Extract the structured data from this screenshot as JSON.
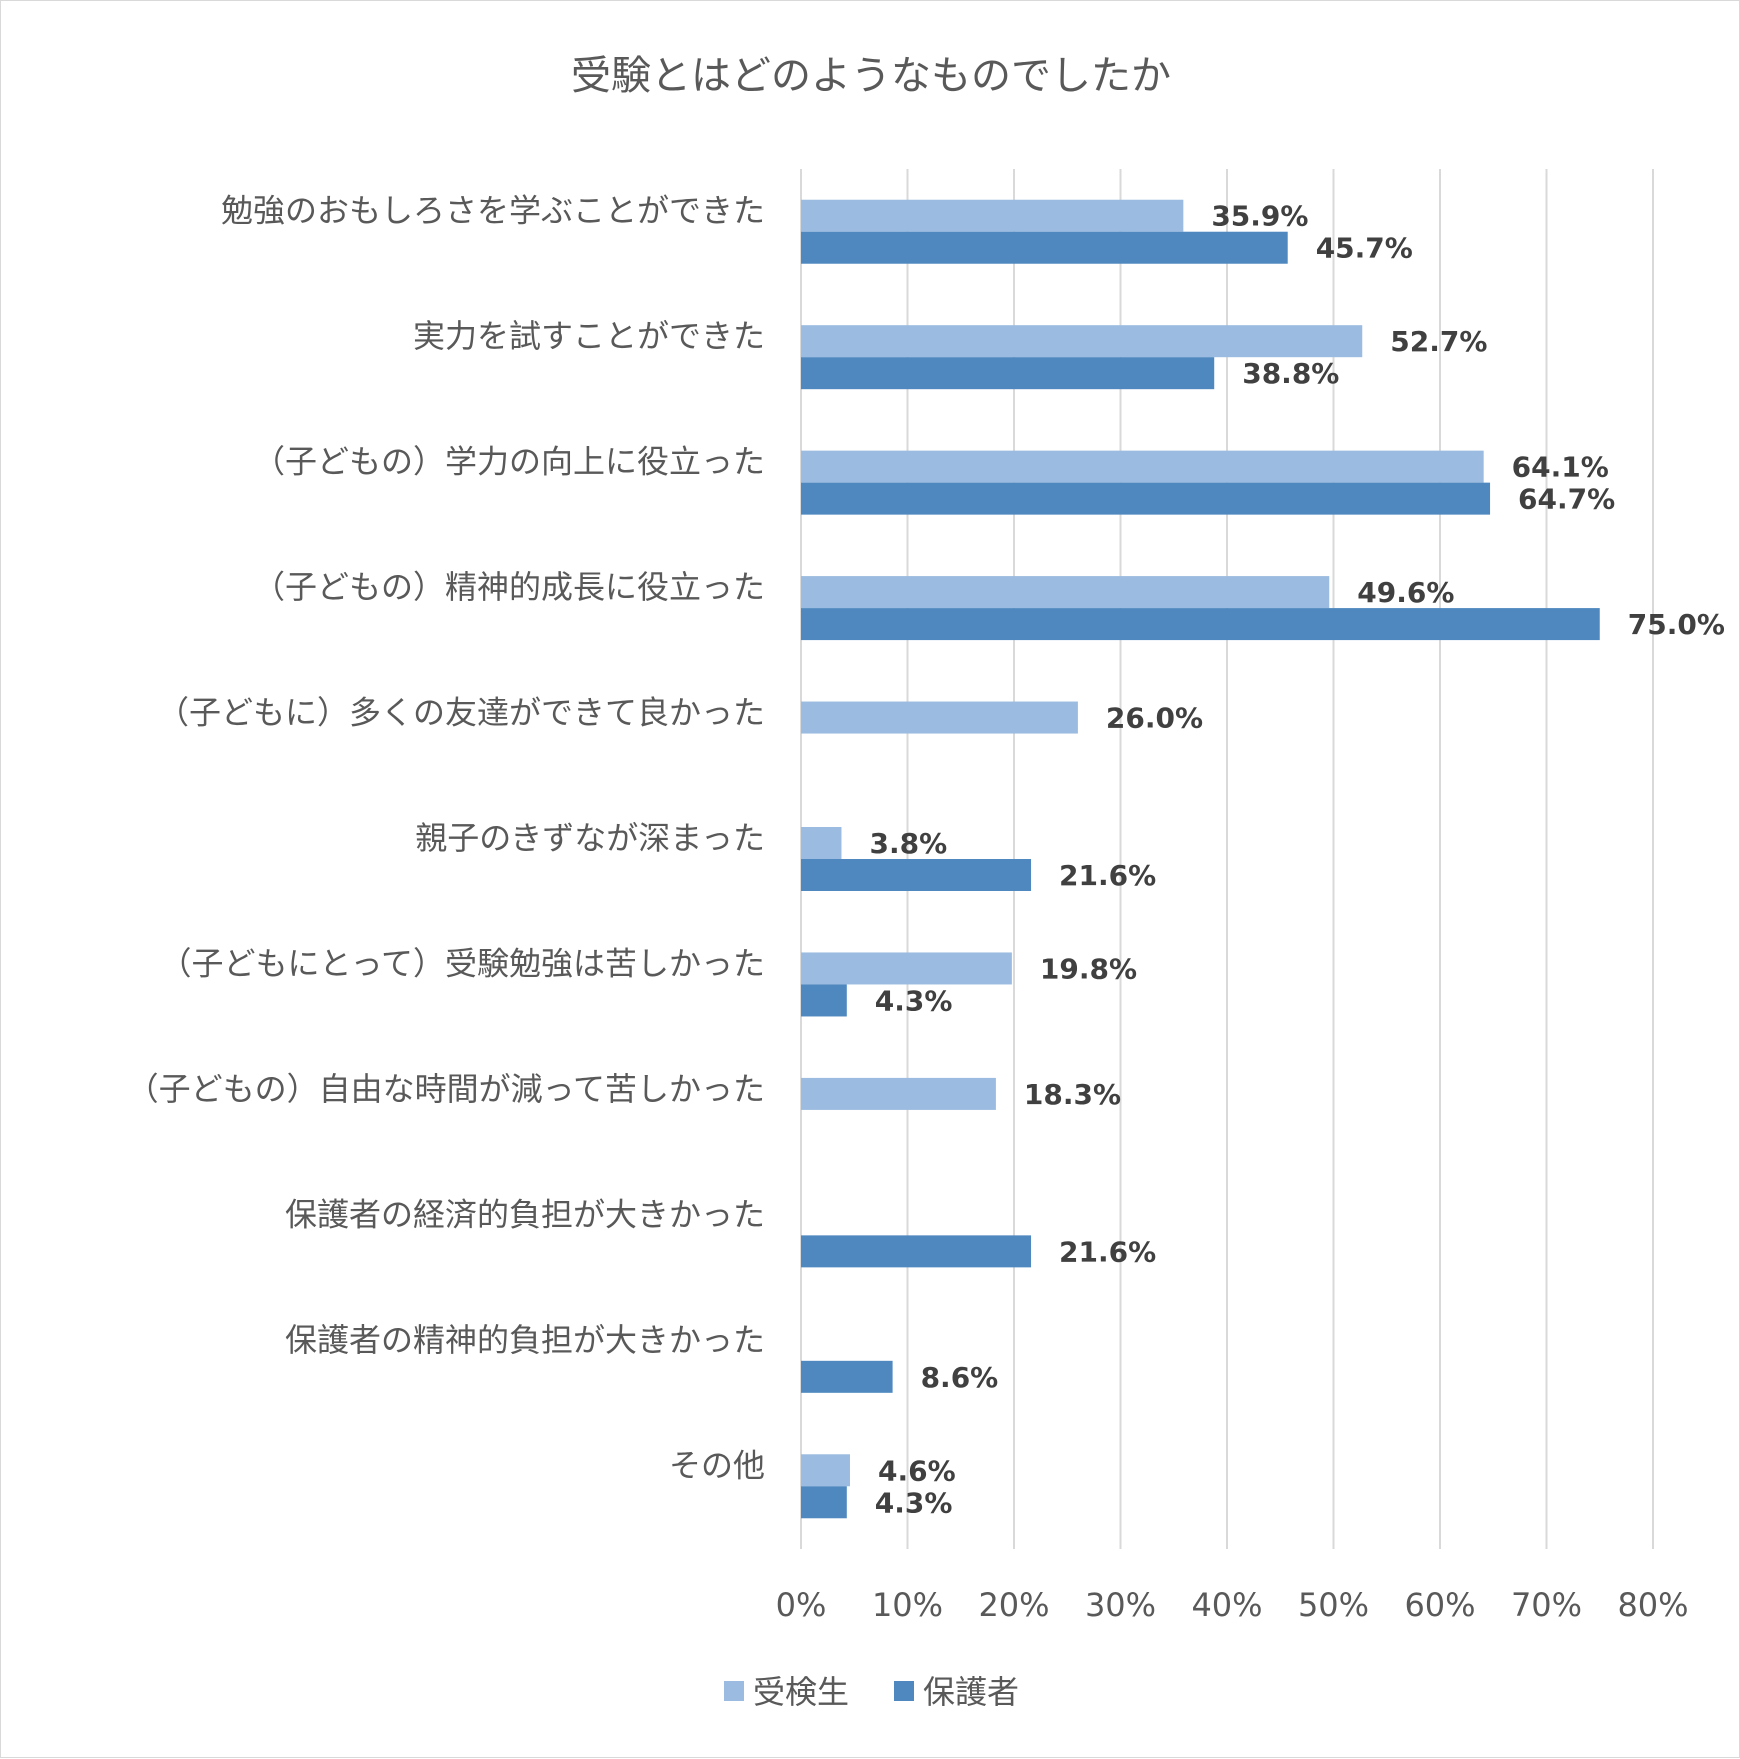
{
  "chart_data": {
    "type": "bar",
    "orientation": "horizontal",
    "title": "受験とはどのようなものでしたか",
    "categories": [
      "勉強のおもしろさを学ぶことができた",
      "実力を試すことができた",
      "（子どもの）学力の向上に役立った",
      "（子どもの）精神的成長に役立った",
      "（子どもに）多くの友達ができて良かった",
      "親子のきずなが深まった",
      "（子どもにとって）受験勉強は苦しかった",
      "（子どもの）自由な時間が減って苦しかった",
      "保護者の経済的負担が大きかった",
      "保護者の精神的負担が大きかった",
      "その他"
    ],
    "series": [
      {
        "name": "受検生",
        "color": "#9bbbe0",
        "values": [
          35.9,
          52.7,
          64.1,
          49.6,
          26.0,
          3.8,
          19.8,
          18.3,
          null,
          null,
          4.6
        ],
        "labels": [
          "35.9%",
          "52.7%",
          "64.1%",
          "49.6%",
          "26.0%",
          "3.8%",
          "19.8%",
          "18.3%",
          null,
          null,
          "4.6%"
        ]
      },
      {
        "name": "保護者",
        "color": "#4f88bf",
        "values": [
          45.7,
          38.8,
          64.7,
          75.0,
          null,
          21.6,
          4.3,
          null,
          21.6,
          8.6,
          4.3
        ],
        "labels": [
          "45.7%",
          "38.8%",
          "64.7%",
          "75.0%",
          null,
          "21.6%",
          "4.3%",
          null,
          "21.6%",
          "8.6%",
          "4.3%"
        ]
      }
    ],
    "xlim": [
      0,
      80
    ],
    "xticks": [
      "0%",
      "10%",
      "20%",
      "30%",
      "40%",
      "50%",
      "60%",
      "70%",
      "80%"
    ],
    "grid": true,
    "legend": "bottom"
  }
}
